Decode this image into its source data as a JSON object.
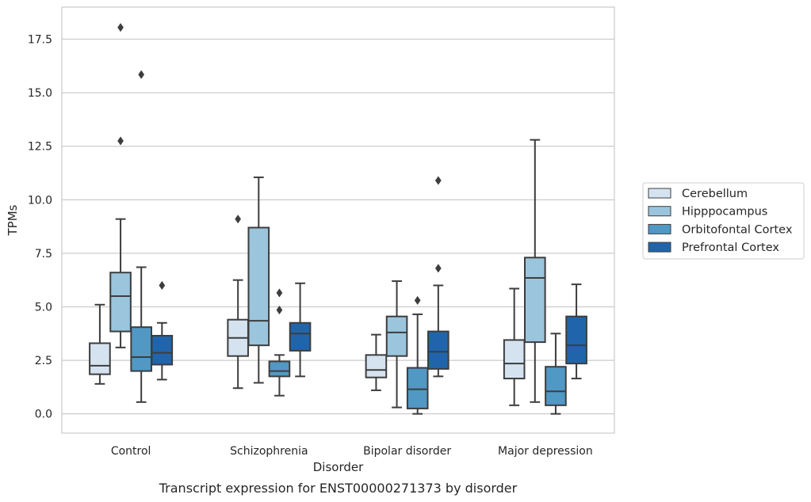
{
  "caption": "Transcript expression for ENST00000271373 by disorder",
  "chart_data": {
    "type": "boxplot",
    "xlabel": "Disorder",
    "ylabel": "TPMs",
    "ylim": [
      -0.9,
      19.0
    ],
    "yticks": [
      "0.0",
      "2.5",
      "5.0",
      "7.5",
      "10.0",
      "12.5",
      "15.0",
      "17.5"
    ],
    "grid": "horizontal",
    "legend_position": "right",
    "categories": [
      "Control",
      "Schizophrenia",
      "Bipolar disorder",
      "Major depression"
    ],
    "series": [
      {
        "name": "Cerebellum",
        "color": "#d5e3f1",
        "boxes": [
          {
            "low": 1.4,
            "q1": 1.85,
            "median": 2.25,
            "q3": 3.3,
            "high": 5.1,
            "outliers": []
          },
          {
            "low": 1.2,
            "q1": 2.7,
            "median": 3.55,
            "q3": 4.4,
            "high": 6.25,
            "outliers": [
              9.1
            ]
          },
          {
            "low": 1.1,
            "q1": 1.7,
            "median": 2.05,
            "q3": 2.75,
            "high": 3.7,
            "outliers": []
          },
          {
            "low": 0.4,
            "q1": 1.65,
            "median": 2.35,
            "q3": 3.45,
            "high": 5.85,
            "outliers": []
          }
        ]
      },
      {
        "name": "Hipppocampus",
        "color": "#9ac5dd",
        "boxes": [
          {
            "low": 3.1,
            "q1": 3.85,
            "median": 5.5,
            "q3": 6.6,
            "high": 9.1,
            "outliers": [
              12.75,
              18.05
            ]
          },
          {
            "low": 1.45,
            "q1": 3.2,
            "median": 4.35,
            "q3": 8.7,
            "high": 11.05,
            "outliers": []
          },
          {
            "low": 0.3,
            "q1": 2.7,
            "median": 3.8,
            "q3": 4.55,
            "high": 6.2,
            "outliers": []
          },
          {
            "low": 0.55,
            "q1": 3.35,
            "median": 6.35,
            "q3": 7.3,
            "high": 12.8,
            "outliers": []
          }
        ]
      },
      {
        "name": "Orbitofontal Cortex",
        "color": "#5198c5",
        "boxes": [
          {
            "low": 0.55,
            "q1": 2.0,
            "median": 2.65,
            "q3": 4.05,
            "high": 6.85,
            "outliers": [
              15.85
            ]
          },
          {
            "low": 0.85,
            "q1": 1.75,
            "median": 2.0,
            "q3": 2.45,
            "high": 2.75,
            "outliers": [
              4.85,
              5.65
            ]
          },
          {
            "low": 0.0,
            "q1": 0.25,
            "median": 1.15,
            "q3": 2.15,
            "high": 4.65,
            "outliers": [
              5.3
            ]
          },
          {
            "low": 0.0,
            "q1": 0.4,
            "median": 1.05,
            "q3": 2.2,
            "high": 3.75,
            "outliers": []
          }
        ]
      },
      {
        "name": "Prefrontal Cortex",
        "color": "#2065ab",
        "boxes": [
          {
            "low": 1.6,
            "q1": 2.3,
            "median": 2.85,
            "q3": 3.65,
            "high": 4.25,
            "outliers": [
              6.0
            ]
          },
          {
            "low": 1.75,
            "q1": 2.95,
            "median": 3.75,
            "q3": 4.25,
            "high": 6.1,
            "outliers": []
          },
          {
            "low": 1.75,
            "q1": 2.1,
            "median": 2.9,
            "q3": 3.85,
            "high": 6.0,
            "outliers": [
              6.8,
              10.9
            ]
          },
          {
            "low": 1.65,
            "q1": 2.35,
            "median": 3.2,
            "q3": 4.55,
            "high": 6.05,
            "outliers": []
          }
        ]
      }
    ]
  }
}
